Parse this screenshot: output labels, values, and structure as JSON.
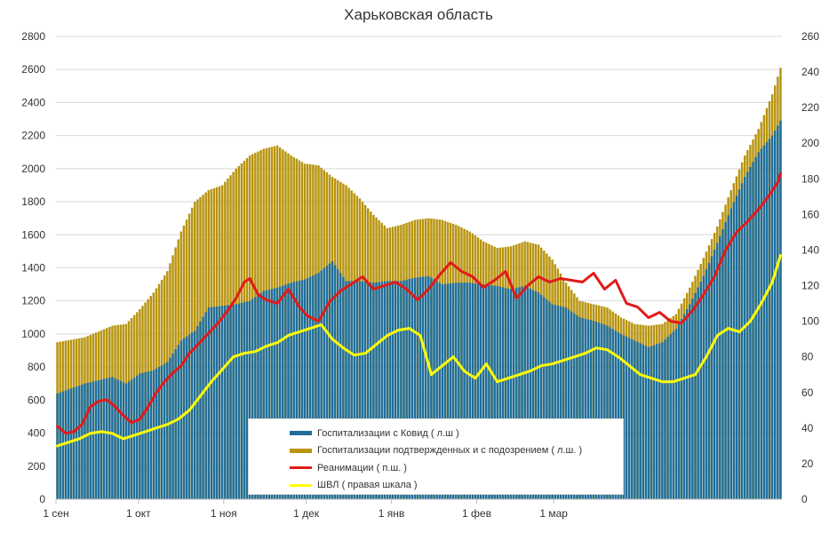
{
  "chart_data": {
    "type": "bar",
    "title": "Харьковская область",
    "x_tick_labels": [
      "1 сен",
      "1 окт",
      "1 ноя",
      "1 дек",
      "1 янв",
      "1 фев",
      "1 мар"
    ],
    "left_axis": {
      "min": 0,
      "max": 2800,
      "step": 200,
      "ticks": [
        "0",
        "200",
        "400",
        "600",
        "800",
        "1000",
        "1200",
        "1400",
        "1600",
        "1800",
        "2000",
        "2200",
        "2400",
        "2600",
        "2800"
      ]
    },
    "right_axis": {
      "min": 0,
      "max": 260,
      "step": 20,
      "ticks": [
        "0",
        "20",
        "40",
        "60",
        "80",
        "100",
        "120",
        "140",
        "160",
        "180",
        "200",
        "220",
        "240",
        "260"
      ]
    },
    "grid": true,
    "legend_position": "bottom-center",
    "series": [
      {
        "name": "Госпитализации с Ковид ( л.ш )",
        "type": "bar",
        "axis": "left",
        "color": "#1f6e9a",
        "points": [
          [
            0,
            640
          ],
          [
            10,
            700
          ],
          [
            20,
            740
          ],
          [
            25,
            700
          ],
          [
            30,
            760
          ],
          [
            35,
            780
          ],
          [
            40,
            830
          ],
          [
            45,
            960
          ],
          [
            50,
            1020
          ],
          [
            55,
            1160
          ],
          [
            60,
            1170
          ],
          [
            65,
            1180
          ],
          [
            70,
            1200
          ],
          [
            75,
            1260
          ],
          [
            80,
            1280
          ],
          [
            85,
            1310
          ],
          [
            90,
            1330
          ],
          [
            95,
            1370
          ],
          [
            100,
            1440
          ],
          [
            105,
            1320
          ],
          [
            110,
            1320
          ],
          [
            115,
            1310
          ],
          [
            120,
            1320
          ],
          [
            125,
            1320
          ],
          [
            130,
            1340
          ],
          [
            135,
            1350
          ],
          [
            140,
            1300
          ],
          [
            145,
            1310
          ],
          [
            150,
            1310
          ],
          [
            155,
            1300
          ],
          [
            160,
            1290
          ],
          [
            165,
            1270
          ],
          [
            170,
            1290
          ],
          [
            175,
            1250
          ],
          [
            180,
            1180
          ],
          [
            185,
            1160
          ],
          [
            190,
            1100
          ],
          [
            195,
            1080
          ],
          [
            200,
            1050
          ],
          [
            205,
            1000
          ],
          [
            210,
            960
          ],
          [
            215,
            920
          ],
          [
            220,
            950
          ],
          [
            225,
            1030
          ],
          [
            230,
            1180
          ],
          [
            235,
            1350
          ],
          [
            240,
            1550
          ],
          [
            245,
            1760
          ],
          [
            250,
            1950
          ],
          [
            255,
            2100
          ],
          [
            260,
            2200
          ],
          [
            263,
            2290
          ]
        ]
      },
      {
        "name": "Госпитализации подтвержденных и с подозрением ( л.ш. )",
        "type": "bar",
        "axis": "left",
        "color": "#b8940f",
        "points": [
          [
            0,
            950
          ],
          [
            10,
            980
          ],
          [
            20,
            1050
          ],
          [
            25,
            1060
          ],
          [
            30,
            1150
          ],
          [
            35,
            1250
          ],
          [
            40,
            1380
          ],
          [
            45,
            1620
          ],
          [
            50,
            1800
          ],
          [
            55,
            1870
          ],
          [
            60,
            1900
          ],
          [
            65,
            2000
          ],
          [
            70,
            2080
          ],
          [
            75,
            2120
          ],
          [
            80,
            2140
          ],
          [
            85,
            2080
          ],
          [
            90,
            2030
          ],
          [
            95,
            2020
          ],
          [
            100,
            1950
          ],
          [
            105,
            1900
          ],
          [
            110,
            1820
          ],
          [
            115,
            1720
          ],
          [
            120,
            1640
          ],
          [
            125,
            1660
          ],
          [
            130,
            1690
          ],
          [
            135,
            1700
          ],
          [
            140,
            1690
          ],
          [
            145,
            1660
          ],
          [
            150,
            1620
          ],
          [
            155,
            1560
          ],
          [
            160,
            1520
          ],
          [
            165,
            1530
          ],
          [
            170,
            1560
          ],
          [
            175,
            1540
          ],
          [
            180,
            1450
          ],
          [
            185,
            1310
          ],
          [
            190,
            1200
          ],
          [
            195,
            1180
          ],
          [
            200,
            1160
          ],
          [
            205,
            1100
          ],
          [
            210,
            1060
          ],
          [
            215,
            1050
          ],
          [
            220,
            1060
          ],
          [
            225,
            1120
          ],
          [
            230,
            1280
          ],
          [
            235,
            1460
          ],
          [
            240,
            1650
          ],
          [
            245,
            1870
          ],
          [
            250,
            2080
          ],
          [
            255,
            2240
          ],
          [
            260,
            2450
          ],
          [
            263,
            2610
          ]
        ]
      },
      {
        "name": "Реанимации ( п.ш. )",
        "type": "line",
        "axis": "right",
        "color": "#e21a1a",
        "points": [
          [
            0,
            41
          ],
          [
            3,
            37
          ],
          [
            6,
            38
          ],
          [
            9,
            42
          ],
          [
            12,
            52
          ],
          [
            15,
            55
          ],
          [
            18,
            56
          ],
          [
            21,
            52
          ],
          [
            24,
            47
          ],
          [
            27,
            43
          ],
          [
            30,
            45
          ],
          [
            33,
            52
          ],
          [
            36,
            60
          ],
          [
            39,
            66
          ],
          [
            42,
            71
          ],
          [
            45,
            75
          ],
          [
            48,
            82
          ],
          [
            50,
            85
          ],
          [
            53,
            90
          ],
          [
            56,
            95
          ],
          [
            59,
            100
          ],
          [
            62,
            106
          ],
          [
            65,
            113
          ],
          [
            68,
            122
          ],
          [
            70,
            124
          ],
          [
            73,
            115
          ],
          [
            76,
            112
          ],
          [
            80,
            110
          ],
          [
            84,
            118
          ],
          [
            88,
            108
          ],
          [
            91,
            103
          ],
          [
            95,
            100
          ],
          [
            99,
            111
          ],
          [
            103,
            117
          ],
          [
            107,
            121
          ],
          [
            111,
            125
          ],
          [
            115,
            118
          ],
          [
            119,
            120
          ],
          [
            123,
            122
          ],
          [
            127,
            118
          ],
          [
            131,
            112
          ],
          [
            135,
            118
          ],
          [
            139,
            126
          ],
          [
            143,
            133
          ],
          [
            147,
            128
          ],
          [
            151,
            125
          ],
          [
            155,
            119
          ],
          [
            159,
            123
          ],
          [
            163,
            128
          ],
          [
            167,
            113
          ],
          [
            171,
            120
          ],
          [
            175,
            125
          ],
          [
            179,
            122
          ],
          [
            183,
            124
          ],
          [
            187,
            123
          ],
          [
            191,
            122
          ],
          [
            195,
            127
          ],
          [
            199,
            118
          ],
          [
            203,
            123
          ],
          [
            207,
            110
          ],
          [
            211,
            108
          ],
          [
            215,
            102
          ],
          [
            219,
            105
          ],
          [
            223,
            100
          ],
          [
            227,
            99
          ],
          [
            231,
            106
          ],
          [
            235,
            115
          ],
          [
            239,
            125
          ],
          [
            243,
            140
          ],
          [
            247,
            150
          ],
          [
            251,
            156
          ],
          [
            255,
            163
          ],
          [
            259,
            171
          ],
          [
            262,
            178
          ],
          [
            263,
            183
          ]
        ]
      },
      {
        "name": "ШВЛ ( правая шкала )",
        "type": "line",
        "axis": "right",
        "color": "#ffff00",
        "points": [
          [
            0,
            30
          ],
          [
            4,
            32
          ],
          [
            8,
            34
          ],
          [
            12,
            37
          ],
          [
            16,
            38
          ],
          [
            20,
            37
          ],
          [
            24,
            34
          ],
          [
            28,
            36
          ],
          [
            32,
            38
          ],
          [
            36,
            40
          ],
          [
            40,
            42
          ],
          [
            44,
            45
          ],
          [
            48,
            50
          ],
          [
            52,
            58
          ],
          [
            56,
            66
          ],
          [
            60,
            73
          ],
          [
            64,
            80
          ],
          [
            68,
            82
          ],
          [
            72,
            83
          ],
          [
            76,
            86
          ],
          [
            80,
            88
          ],
          [
            84,
            92
          ],
          [
            88,
            94
          ],
          [
            92,
            96
          ],
          [
            96,
            98
          ],
          [
            100,
            90
          ],
          [
            104,
            85
          ],
          [
            108,
            81
          ],
          [
            112,
            82
          ],
          [
            116,
            87
          ],
          [
            120,
            92
          ],
          [
            124,
            95
          ],
          [
            128,
            96
          ],
          [
            132,
            92
          ],
          [
            136,
            70
          ],
          [
            140,
            75
          ],
          [
            144,
            80
          ],
          [
            148,
            72
          ],
          [
            152,
            68
          ],
          [
            156,
            76
          ],
          [
            160,
            66
          ],
          [
            164,
            68
          ],
          [
            168,
            70
          ],
          [
            172,
            72
          ],
          [
            176,
            75
          ],
          [
            180,
            76
          ],
          [
            184,
            78
          ],
          [
            188,
            80
          ],
          [
            192,
            82
          ],
          [
            196,
            85
          ],
          [
            200,
            84
          ],
          [
            204,
            80
          ],
          [
            208,
            75
          ],
          [
            212,
            70
          ],
          [
            216,
            68
          ],
          [
            220,
            66
          ],
          [
            224,
            66
          ],
          [
            228,
            68
          ],
          [
            232,
            70
          ],
          [
            236,
            80
          ],
          [
            240,
            92
          ],
          [
            244,
            96
          ],
          [
            248,
            94
          ],
          [
            252,
            100
          ],
          [
            256,
            110
          ],
          [
            260,
            122
          ],
          [
            263,
            137
          ]
        ]
      }
    ]
  }
}
